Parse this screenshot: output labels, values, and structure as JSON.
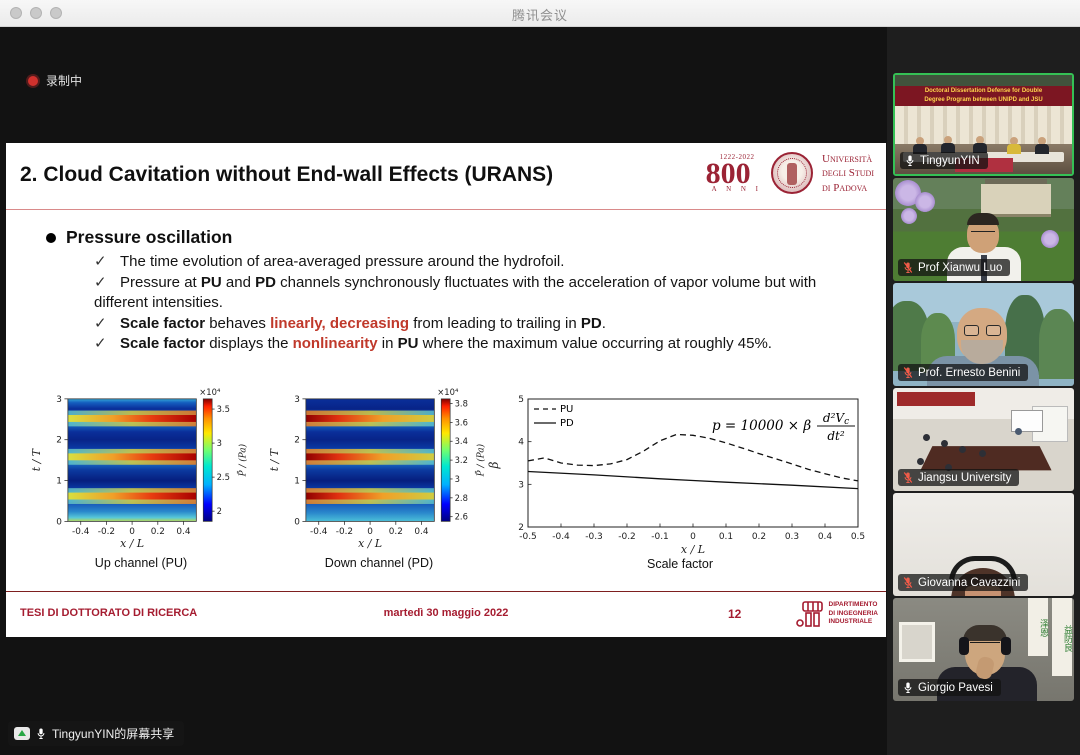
{
  "window": {
    "title": "腾讯会议"
  },
  "screen_share": {
    "recording_label": "录制中",
    "sharer_label": "TingyunYIN的屏幕共享"
  },
  "slide": {
    "title": "2. Cloud Cavitation without End-wall Effects (URANS)",
    "check_glyph": "✓",
    "logo": {
      "years": "1222-2022",
      "number": "800",
      "anni": "A N N I",
      "uni_line1": "Università",
      "uni_line2": "degli Studi",
      "uni_line3": "di Padova"
    },
    "heading": "Pressure oscillation",
    "bullets": [
      {
        "segments": [
          {
            "text": "The time evolution of area-averaged pressure around the hydrofoil.",
            "style": "n"
          }
        ]
      },
      {
        "segments": [
          {
            "text": "Pressure at ",
            "style": "n"
          },
          {
            "text": "PU",
            "style": "b"
          },
          {
            "text": " and ",
            "style": "n"
          },
          {
            "text": "PD",
            "style": "b"
          },
          {
            "text": " channels synchronously fluctuates with the acceleration of vapor volume but with different intensities.",
            "style": "n"
          }
        ]
      },
      {
        "segments": [
          {
            "text": "Scale factor",
            "style": "b"
          },
          {
            "text": " behaves ",
            "style": "n"
          },
          {
            "text": "linearly",
            "style": "br"
          },
          {
            "text": ", ",
            "style": "br"
          },
          {
            "text": "decreasing",
            "style": "br"
          },
          {
            "text": " from leading to trailing in ",
            "style": "n"
          },
          {
            "text": "PD",
            "style": "b"
          },
          {
            "text": ".",
            "style": "n"
          }
        ]
      },
      {
        "segments": [
          {
            "text": "Scale factor",
            "style": "b"
          },
          {
            "text": " displays the ",
            "style": "n"
          },
          {
            "text": "nonlinearity",
            "style": "br"
          },
          {
            "text": " in ",
            "style": "n"
          },
          {
            "text": "PU",
            "style": "b"
          },
          {
            "text": " where the maximum value occurring at roughly 45%.",
            "style": "n"
          }
        ]
      }
    ],
    "footer": {
      "left": "TESI DI DOTTORATO DI RICERCA",
      "date": "martedì 30 maggio 2022",
      "page": "12",
      "dept_line1": "DIPARTIMENTO",
      "dept_line2": "DI INGEGNERIA",
      "dept_line3": "INDUSTRIALE"
    }
  },
  "chart_data": [
    {
      "type": "heatmap",
      "title": "Up channel (PU)",
      "xlabel": "x / L",
      "ylabel": "t / T",
      "x_range": [
        -0.5,
        0.5
      ],
      "y_range": [
        0,
        3
      ],
      "xticks": [
        -0.4,
        -0.2,
        0,
        0.2,
        0.4
      ],
      "yticks": [
        0,
        1,
        2,
        3
      ],
      "colorbar_label": "P̄ / (Pa)",
      "colorbar_scale": "×10⁴",
      "colorbar_ticks": [
        2,
        2.5,
        3,
        3.5
      ],
      "colorbar_range": [
        1.85,
        3.65
      ],
      "bands_tT": [
        0.62,
        1.58,
        2.52
      ],
      "pattern": "periodic high-pressure bands each cycle, intensity increasing from leading (left) to trailing (right) edge; dark-blue low-pressure troughs between bands"
    },
    {
      "type": "heatmap",
      "title": "Down channel (PD)",
      "xlabel": "x / L",
      "ylabel": "t / T",
      "x_range": [
        -0.5,
        0.5
      ],
      "y_range": [
        0,
        3
      ],
      "xticks": [
        -0.4,
        -0.2,
        0,
        0.2,
        0.4
      ],
      "yticks": [
        0,
        1,
        2,
        3
      ],
      "colorbar_label": "P̄ / (Pa)",
      "colorbar_scale": "×10⁴",
      "colorbar_ticks": [
        2.6,
        2.8,
        3,
        3.2,
        3.4,
        3.6,
        3.8
      ],
      "colorbar_range": [
        2.55,
        3.85
      ],
      "bands_tT": [
        0.62,
        1.58,
        2.52
      ],
      "pattern": "periodic high-pressure bands each cycle, intensity decreasing from leading (left) to trailing (right) edge; dark-blue low-pressure troughs between bands"
    },
    {
      "type": "line",
      "title": "Scale factor",
      "xlabel": "x / L",
      "ylabel": "β",
      "xlim": [
        -0.5,
        0.5
      ],
      "ylim": [
        2,
        5
      ],
      "xticks": [
        -0.5,
        -0.4,
        -0.3,
        -0.2,
        -0.1,
        0,
        0.1,
        0.2,
        0.3,
        0.4,
        0.5
      ],
      "yticks": [
        2,
        3,
        4,
        5
      ],
      "legend": [
        "PU",
        "PD"
      ],
      "legend_position": "upper left",
      "annotation": "p = 10000 × β·d²Vc/dt²",
      "formula": {
        "main": "p = 10000 × β",
        "num": "d²V",
        "num_sub": "c",
        "den": "dt²"
      },
      "series": [
        {
          "name": "PU",
          "style": "dashed",
          "points": [
            [
              -0.5,
              3.55
            ],
            [
              -0.45,
              3.62
            ],
            [
              -0.4,
              3.5
            ],
            [
              -0.35,
              3.45
            ],
            [
              -0.3,
              3.44
            ],
            [
              -0.25,
              3.48
            ],
            [
              -0.2,
              3.58
            ],
            [
              -0.15,
              3.78
            ],
            [
              -0.1,
              4.02
            ],
            [
              -0.05,
              4.17
            ],
            [
              0,
              4.15
            ],
            [
              0.05,
              4.08
            ],
            [
              0.1,
              3.97
            ],
            [
              0.15,
              3.85
            ],
            [
              0.2,
              3.72
            ],
            [
              0.25,
              3.6
            ],
            [
              0.3,
              3.48
            ],
            [
              0.35,
              3.35
            ],
            [
              0.4,
              3.25
            ],
            [
              0.45,
              3.15
            ],
            [
              0.5,
              3.08
            ]
          ]
        },
        {
          "name": "PD",
          "style": "solid",
          "points": [
            [
              -0.5,
              3.3
            ],
            [
              -0.3,
              3.22
            ],
            [
              -0.1,
              3.13
            ],
            [
              0,
              3.09
            ],
            [
              0.1,
              3.05
            ],
            [
              0.3,
              2.98
            ],
            [
              0.5,
              2.9
            ]
          ]
        }
      ]
    }
  ],
  "participants": [
    {
      "name": "TingyunYIN",
      "muted": false,
      "active_speaker": true,
      "banner_line1": "Doctoral Dissertation Defense for Double",
      "banner_line2": "Degree Program between UNIPD and JSU"
    },
    {
      "name": "Prof Xianwu Luo",
      "muted": true
    },
    {
      "name": "Prof. Ernesto Benini",
      "muted": true
    },
    {
      "name": "Jiangsu University",
      "muted": true
    },
    {
      "name": "Giovanna Cavazzini",
      "muted": true
    },
    {
      "name": "Giorgio Pavesi",
      "muted": false,
      "calligraphy1": "泽恩",
      "calligraphy2": "益防良"
    }
  ]
}
